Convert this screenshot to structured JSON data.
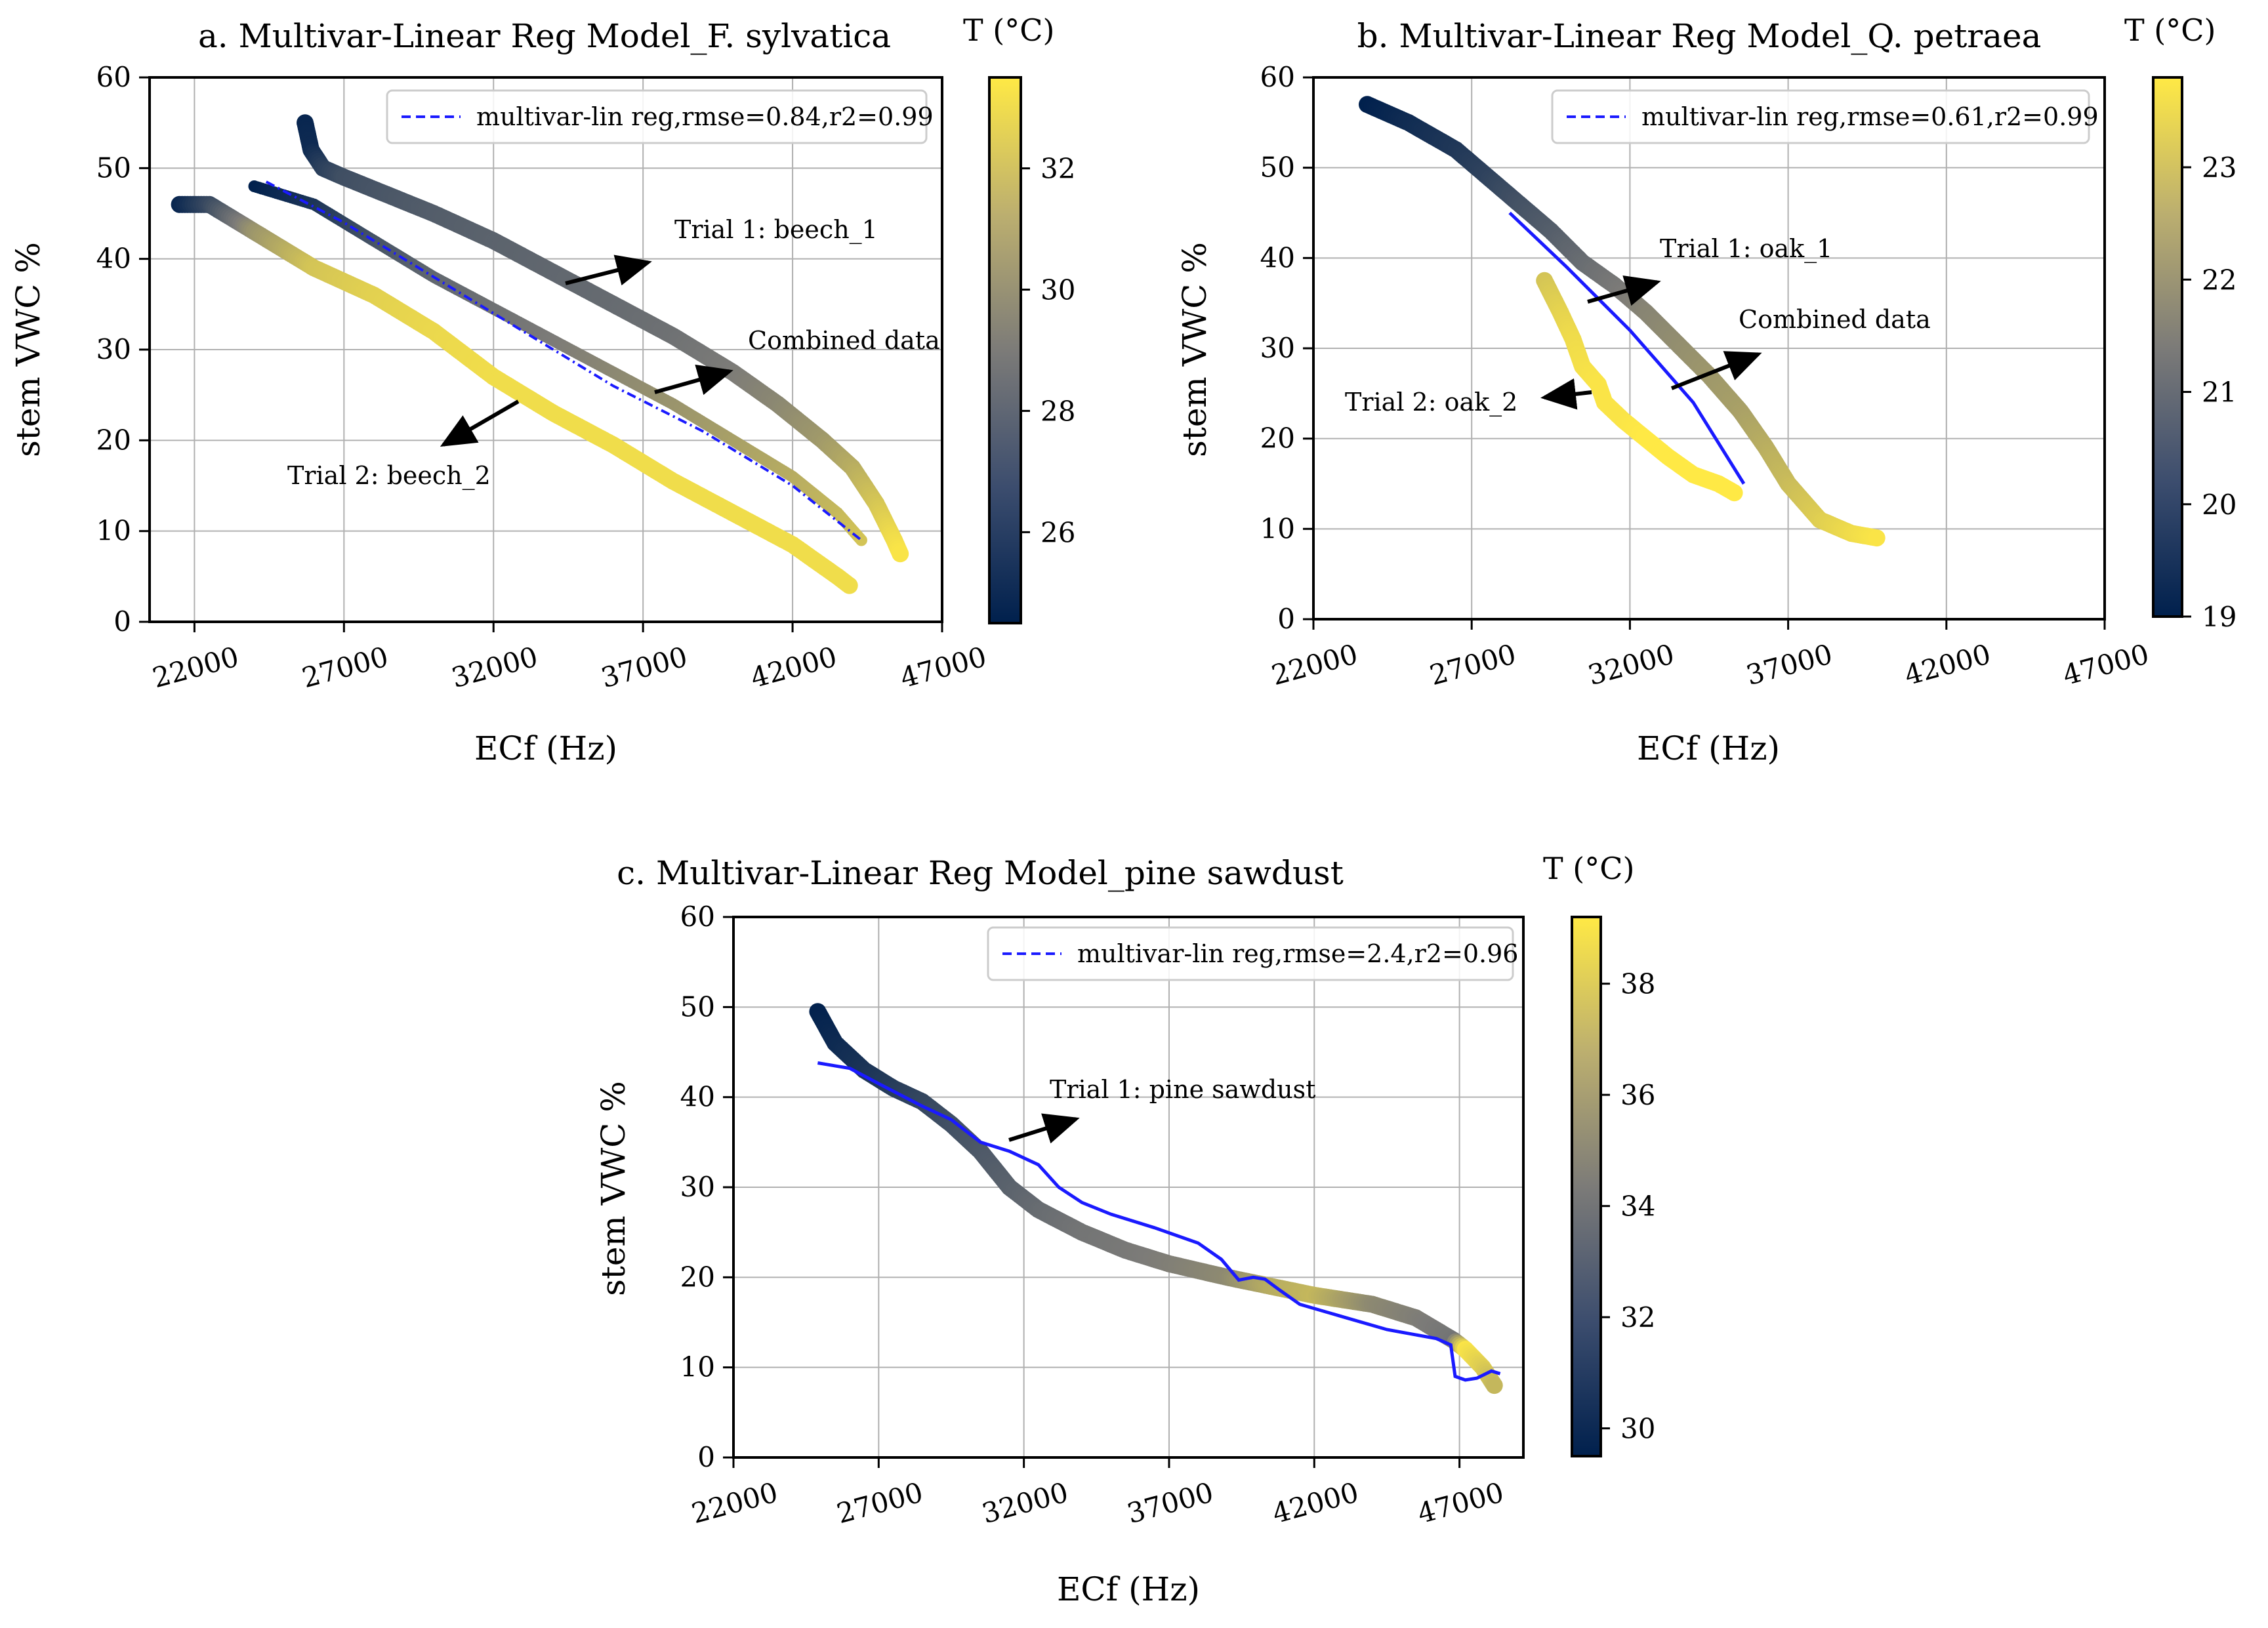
{
  "colors": {
    "cmap_low": "#00204d",
    "cmap_mid": "#7c7b78",
    "cmap_high": "#ffe945",
    "fit_line": "#1a1aff",
    "grid": "#b0b0b0",
    "axis": "#000000"
  },
  "chart_data": [
    {
      "type": "scatter",
      "title": "a. Multivar-Linear Reg Model_F. sylvatica",
      "xlabel": "ECf (Hz)",
      "ylabel": "stem VWC %",
      "xticks": [
        "22000",
        "27000",
        "32000",
        "37000",
        "42000",
        "47000"
      ],
      "yticks": [
        "0",
        "10",
        "20",
        "30",
        "40",
        "50",
        "60"
      ],
      "xlim": [
        20500,
        47000
      ],
      "ylim": [
        0,
        60
      ],
      "grid": true,
      "legend": {
        "position": "top-right",
        "label": "multivar-lin reg,rmse=0.84,r2=0.99"
      },
      "colorbar": {
        "label": "T (°C)",
        "ticks": [
          "26",
          "28",
          "30",
          "32"
        ],
        "range": [
          24.5,
          33.5
        ]
      },
      "series": [
        {
          "name": "Trial 1: beech_1",
          "points": [
            [
              25700,
              55,
              24.8
            ],
            [
              25900,
              52,
              25
            ],
            [
              26300,
              50,
              26
            ],
            [
              27000,
              49,
              26.8
            ],
            [
              28500,
              47,
              27.2
            ],
            [
              30000,
              45,
              27.5
            ],
            [
              32000,
              42,
              27.8
            ],
            [
              34000,
              38.5,
              28
            ],
            [
              36000,
              35,
              28.2
            ],
            [
              38000,
              31.5,
              28.5
            ],
            [
              40000,
              27.5,
              29
            ],
            [
              41500,
              24,
              29.5
            ],
            [
              43000,
              20,
              30.2
            ],
            [
              44000,
              17,
              31
            ],
            [
              44800,
              13,
              32
            ],
            [
              45400,
              9,
              33
            ],
            [
              45600,
              7.5,
              33.3
            ]
          ]
        },
        {
          "name": "Trial 2: beech_2",
          "points": [
            [
              21500,
              46,
              24.8
            ],
            [
              22500,
              46,
              26.5
            ],
            [
              24000,
              43,
              30
            ],
            [
              26000,
              39,
              32
            ],
            [
              28000,
              36,
              32.5
            ],
            [
              30000,
              32,
              32.8
            ],
            [
              32000,
              27,
              33
            ],
            [
              34000,
              23,
              33
            ],
            [
              36000,
              19.5,
              33
            ],
            [
              38000,
              15.5,
              33
            ],
            [
              40000,
              12,
              33
            ],
            [
              42000,
              8.5,
              33
            ],
            [
              43500,
              5,
              33
            ],
            [
              43900,
              4,
              33
            ]
          ]
        },
        {
          "name": "Combined data",
          "points": [
            [
              24000,
              48,
              24.5
            ],
            [
              26000,
              46,
              25.5
            ],
            [
              28000,
              42,
              27
            ],
            [
              30000,
              38,
              28
            ],
            [
              32000,
              34.5,
              28.5
            ],
            [
              34000,
              31,
              29
            ],
            [
              36000,
              27.5,
              29.5
            ],
            [
              38000,
              24,
              30
            ],
            [
              40000,
              20,
              30.5
            ],
            [
              42000,
              16,
              31
            ],
            [
              43500,
              12,
              31.5
            ],
            [
              44300,
              9,
              32
            ]
          ]
        }
      ],
      "fit_line": [
        [
          24400,
          48.5
        ],
        [
          27000,
          44
        ],
        [
          30000,
          38
        ],
        [
          33000,
          32
        ],
        [
          36000,
          26
        ],
        [
          39000,
          21
        ],
        [
          42000,
          15
        ],
        [
          44300,
          9
        ]
      ],
      "annotations": [
        "Trial 1: beech_1",
        "Combined data",
        "Trial 2: beech_2"
      ]
    },
    {
      "type": "scatter",
      "title": "b. Multivar-Linear Reg Model_Q. petraea",
      "xlabel": "ECf (Hz)",
      "ylabel": "stem VWC %",
      "xticks": [
        "22000",
        "27000",
        "32000",
        "37000",
        "42000",
        "47000"
      ],
      "yticks": [
        "0",
        "10",
        "20",
        "30",
        "40",
        "50",
        "60"
      ],
      "xlim": [
        22000,
        47000
      ],
      "ylim": [
        0,
        60
      ],
      "grid": true,
      "legend": {
        "position": "top-right",
        "label": "multivar-lin reg,rmse=0.61,r2=0.99"
      },
      "colorbar": {
        "label": "T (°C)",
        "ticks": [
          "19",
          "20",
          "21",
          "22",
          "23"
        ],
        "range": [
          19,
          23.8
        ]
      },
      "series": [
        {
          "name": "Trial 1: oak_1",
          "points": [
            [
              23700,
              57,
              19
            ],
            [
              25000,
              55,
              19.3
            ],
            [
              26500,
              52,
              19.6
            ],
            [
              27500,
              49,
              19.9
            ],
            [
              28500,
              46,
              20.3
            ],
            [
              29500,
              43,
              20.6
            ],
            [
              30500,
              39.5,
              21
            ],
            [
              31500,
              37,
              21.3
            ],
            [
              32500,
              34,
              21.6
            ],
            [
              33500,
              30.5,
              21.8
            ],
            [
              34500,
              27,
              22
            ],
            [
              35500,
              23,
              22.2
            ],
            [
              36300,
              19,
              22.5
            ],
            [
              37000,
              15,
              22.8
            ],
            [
              38000,
              11,
              23.2
            ],
            [
              39000,
              9.5,
              23.5
            ],
            [
              39800,
              9,
              23.7
            ]
          ]
        },
        {
          "name": "Trial 2: oak_2",
          "points": [
            [
              29300,
              37.5,
              23
            ],
            [
              29800,
              34,
              23.3
            ],
            [
              30200,
              31,
              23.5
            ],
            [
              30500,
              28,
              23.6
            ],
            [
              31000,
              26,
              23.7
            ],
            [
              31200,
              24,
              23.7
            ],
            [
              31800,
              22,
              23.7
            ],
            [
              32500,
              20,
              23.8
            ],
            [
              33200,
              18,
              23.8
            ],
            [
              34000,
              16,
              23.8
            ],
            [
              34800,
              15,
              23.8
            ],
            [
              35300,
              14,
              23.8
            ]
          ]
        }
      ],
      "fit_line": [
        [
          28200,
          45
        ],
        [
          30000,
          39
        ],
        [
          32000,
          32
        ],
        [
          34000,
          24
        ],
        [
          35600,
          15
        ]
      ],
      "annotations": [
        "Trial 1: oak_1",
        "Combined data",
        "Trial 2: oak_2"
      ]
    },
    {
      "type": "scatter",
      "title": "c. Multivar-Linear Reg Model_pine sawdust",
      "xlabel": "ECf (Hz)",
      "ylabel": "stem VWC %",
      "xticks": [
        "22000",
        "27000",
        "32000",
        "37000",
        "42000",
        "47000"
      ],
      "yticks": [
        "0",
        "10",
        "20",
        "30",
        "40",
        "50",
        "60"
      ],
      "xlim": [
        22000,
        49200
      ],
      "ylim": [
        0,
        60
      ],
      "grid": true,
      "legend": {
        "position": "top-right",
        "label": "multivar-lin reg,rmse=2.4,r2=0.96"
      },
      "colorbar": {
        "label": "T (°C)",
        "ticks": [
          "30",
          "32",
          "34",
          "36",
          "38"
        ],
        "range": [
          29.5,
          39.2
        ]
      },
      "series": [
        {
          "name": "Trial 1: pine sawdust",
          "points": [
            [
              24900,
              49.5,
              29.6
            ],
            [
              25500,
              46,
              30
            ],
            [
              26500,
              43,
              30.5
            ],
            [
              27500,
              41,
              31
            ],
            [
              28500,
              39.5,
              31.5
            ],
            [
              29500,
              37,
              32
            ],
            [
              30500,
              34,
              32.5
            ],
            [
              31500,
              30,
              33
            ],
            [
              32500,
              27.5,
              33.5
            ],
            [
              34000,
              25,
              34
            ],
            [
              35500,
              23,
              34.2
            ],
            [
              37000,
              21.5,
              34.5
            ],
            [
              39000,
              20,
              35
            ],
            [
              40500,
              19,
              36.5
            ],
            [
              42000,
              18,
              37
            ],
            [
              44000,
              17,
              35
            ],
            [
              45500,
              15.5,
              34.5
            ],
            [
              46800,
              13,
              34
            ],
            [
              47200,
              12,
              39
            ],
            [
              47800,
              10,
              38
            ],
            [
              48200,
              8,
              37
            ]
          ]
        }
      ],
      "fit_line": [
        [
          24900,
          43.8
        ],
        [
          26000,
          43.2
        ],
        [
          27000,
          41.5
        ],
        [
          28500,
          39
        ],
        [
          29500,
          37.5
        ],
        [
          30500,
          35
        ],
        [
          31500,
          34
        ],
        [
          32500,
          32.5
        ],
        [
          33200,
          30
        ],
        [
          34000,
          28.3
        ],
        [
          35000,
          27
        ],
        [
          36500,
          25.5
        ],
        [
          38000,
          23.8
        ],
        [
          38800,
          22
        ],
        [
          39400,
          19.7
        ],
        [
          39900,
          20
        ],
        [
          40300,
          19.8
        ],
        [
          40800,
          18.6
        ],
        [
          41500,
          17
        ],
        [
          43000,
          15.6
        ],
        [
          44500,
          14.2
        ],
        [
          46200,
          13.2
        ],
        [
          46700,
          12.5
        ],
        [
          46850,
          9
        ],
        [
          47200,
          8.6
        ],
        [
          47600,
          8.8
        ],
        [
          48100,
          9.6
        ],
        [
          48400,
          9.3
        ]
      ],
      "annotations": [
        "Trial 1: pine sawdust"
      ]
    }
  ]
}
